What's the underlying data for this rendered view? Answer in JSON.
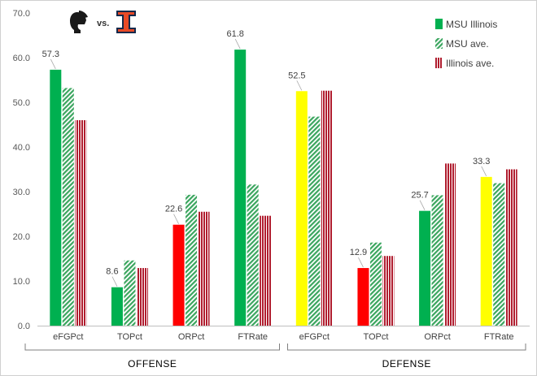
{
  "chart_data": {
    "type": "bar",
    "header": {
      "left_logo": "spartan-helmet-logo",
      "vs_text": "vs.",
      "right_logo": "illinois-i-logo"
    },
    "groups": [
      {
        "name": "OFFENSE",
        "categories": [
          "eFGPct",
          "TOPct",
          "ORPct",
          "FTRate"
        ]
      },
      {
        "name": "DEFENSE",
        "categories": [
          "eFGPct",
          "TOPct",
          "ORPct",
          "FTRate"
        ]
      }
    ],
    "series": [
      {
        "name": "MSU Illinois",
        "style": "solid",
        "values": [
          57.3,
          8.6,
          22.6,
          61.8,
          52.5,
          12.9,
          25.7,
          33.3
        ],
        "point_colors": [
          "#00b050",
          "#00b050",
          "#ff0000",
          "#00b050",
          "#ffff00",
          "#ff0000",
          "#00b050",
          "#ffff00"
        ],
        "data_labels": [
          "57.3",
          "8.6",
          "22.6",
          "61.8",
          "52.5",
          "12.9",
          "25.7",
          "33.3"
        ]
      },
      {
        "name": "MSU ave.",
        "style": "hatched",
        "color": "#3aa55e",
        "values": [
          53.2,
          14.6,
          29.3,
          31.6,
          46.8,
          18.6,
          29.2,
          31.9
        ]
      },
      {
        "name": "Illinois ave.",
        "style": "hatched",
        "color": "#b01c2e",
        "values": [
          46.0,
          12.9,
          25.5,
          24.6,
          52.6,
          15.6,
          36.3,
          35.0
        ]
      }
    ],
    "y_axis": {
      "min": 0,
      "max": 70,
      "ticks": [
        "0.0",
        "10.0",
        "20.0",
        "30.0",
        "40.0",
        "50.0",
        "60.0",
        "70.0"
      ]
    },
    "legend": {
      "placement": "top-right",
      "items": [
        {
          "label": "MSU Illinois",
          "color": "#00b050",
          "style": "solid"
        },
        {
          "label": "MSU ave.",
          "color": "#3aa55e",
          "style": "hatched"
        },
        {
          "label": "Illinois ave.",
          "color": "#b01c2e",
          "style": "hatched"
        }
      ]
    },
    "grid": false,
    "title": "",
    "xlabel": "",
    "ylabel": ""
  }
}
